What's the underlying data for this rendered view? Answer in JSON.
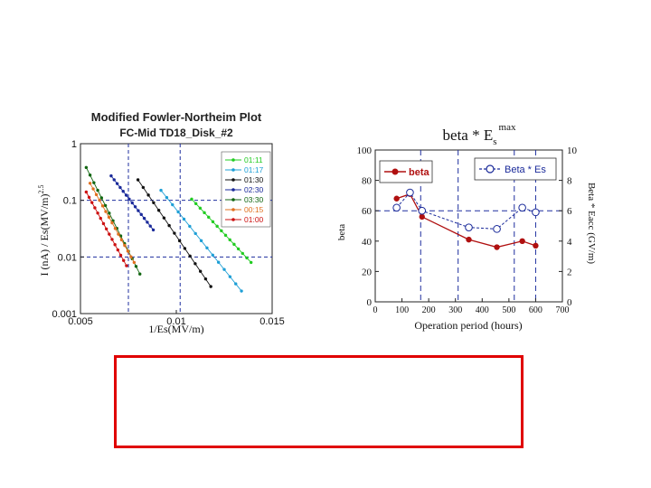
{
  "charts": {
    "fn": {
      "title": "Modified Fowler-Northeim Plot",
      "subtitle": "FC-Mid  TD18_Disk_#2",
      "ylabel_main": "I (nA) / Es(MV/m)",
      "ylabel_sup": "2.5",
      "xlabel": "1/Es(MV/m)"
    },
    "beta": {
      "title_main": "beta * E",
      "title_sub": "s",
      "title_sup": "max",
      "ylabel_left": "beta",
      "ylabel_right": "Beta * Eacc (GV/m)",
      "xlabel": "Operation period (hours)",
      "legend_beta": "beta",
      "legend_beta_es": "Beta * Es"
    }
  },
  "colors": {
    "box": "#e00000",
    "beta": "#b01010",
    "beta_es": "#1a2a9a",
    "guide": "#1f2f9f"
  },
  "chart_data": [
    {
      "type": "scatter",
      "title": "Modified Fowler-Northeim Plot",
      "subtitle": "FC-Mid  TD18_Disk_#2",
      "xlabel": "1/Es(MV/m)",
      "ylabel": "I (nA) / Es(MV/m)^2.5",
      "xlim": [
        0.005,
        0.015
      ],
      "ylim": [
        0.001,
        1
      ],
      "yscale": "log",
      "xticks": [
        "0.005",
        "0.01",
        "0.015"
      ],
      "yticks": [
        "0.001",
        "0.01",
        "0.1",
        "1"
      ],
      "guide_x": [
        0.0075,
        0.0102
      ],
      "guide_y": [
        0.01,
        0.1
      ],
      "legend_position": "top-right",
      "series": [
        {
          "name": "01:11",
          "color": "#22cc22",
          "x0": 0.0108,
          "y0": 0.105,
          "x1": 0.0139,
          "y1": 0.008
        },
        {
          "name": "01:17",
          "color": "#1e9fd6",
          "x0": 0.0092,
          "y0": 0.15,
          "x1": 0.0134,
          "y1": 0.0025
        },
        {
          "name": "01:30",
          "color": "#111111",
          "x0": 0.008,
          "y0": 0.23,
          "x1": 0.0118,
          "y1": 0.003
        },
        {
          "name": "02:30",
          "color": "#1a2a9a",
          "x0": 0.0066,
          "y0": 0.27,
          "x1": 0.0088,
          "y1": 0.03
        },
        {
          "name": "03:30",
          "color": "#116611",
          "x0": 0.0053,
          "y0": 0.38,
          "x1": 0.0081,
          "y1": 0.005
        },
        {
          "name": "00:15",
          "color": "#e07020",
          "x0": 0.0055,
          "y0": 0.2,
          "x1": 0.0078,
          "y1": 0.008
        },
        {
          "name": "01:00",
          "color": "#cc1111",
          "x0": 0.0053,
          "y0": 0.14,
          "x1": 0.0074,
          "y1": 0.007
        }
      ]
    },
    {
      "type": "line",
      "title": "beta * Es max",
      "xlabel": "Operation period (hours)",
      "ylabel": "beta",
      "y2label": "Beta * Eacc (GV/m)",
      "xlim": [
        0,
        700
      ],
      "ylim": [
        0,
        100
      ],
      "y2lim": [
        0,
        10
      ],
      "xticks": [
        0,
        100,
        200,
        300,
        400,
        500,
        600,
        700
      ],
      "yticks": [
        0,
        20,
        40,
        60,
        80,
        100
      ],
      "y2ticks": [
        0,
        2,
        4,
        6,
        8,
        10
      ],
      "guide_x": [
        170,
        310,
        520,
        600
      ],
      "guide_y": [
        60
      ],
      "legend_position": "top",
      "series": [
        {
          "name": "beta",
          "axis": "left",
          "color": "#b01010",
          "style": "solid",
          "x": [
            80,
            130,
            175,
            350,
            455,
            550,
            600
          ],
          "y": [
            68,
            71,
            56,
            41,
            36,
            40,
            37
          ]
        },
        {
          "name": "Beta * Es",
          "axis": "right",
          "color": "#1a2a9a",
          "style": "dashed",
          "x": [
            80,
            130,
            175,
            350,
            455,
            550,
            600
          ],
          "y": [
            6.2,
            7.2,
            6.0,
            4.9,
            4.8,
            6.2,
            5.9
          ]
        }
      ]
    }
  ]
}
